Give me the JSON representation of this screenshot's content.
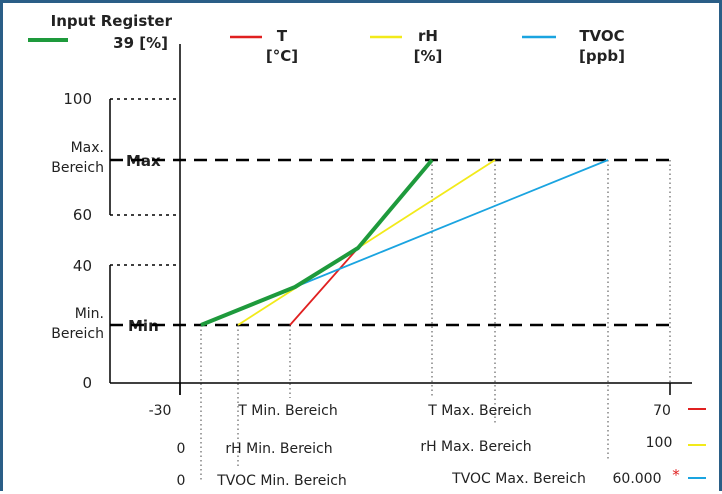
{
  "legend": {
    "register_line1": "Input Register",
    "register_line2": "39 [%]",
    "t_name": "T",
    "t_unit": "[°C]",
    "rh_name": "rH",
    "rh_unit": "[%]",
    "tvoc_name": "TVOC",
    "tvoc_unit": "[ppb]"
  },
  "y_axis": {
    "tick_100": "100",
    "tick_60": "60",
    "tick_40": "40",
    "tick_0": "0",
    "max_range_line1": "Max.",
    "max_range_line2": "Bereich",
    "min_range_line1": "Min.",
    "min_range_line2": "Bereich",
    "max_label": "Max",
    "min_label": "Min"
  },
  "rows": {
    "t": {
      "start": "-30",
      "min_label": "T Min. Bereich",
      "max_label": "T Max. Bereich",
      "end": "70"
    },
    "rh": {
      "start": "0",
      "min_label": "rH Min. Bereich",
      "max_label": "rH Max. Bereich",
      "end": "100"
    },
    "tvoc": {
      "start": "0",
      "min_label": "TVOC Min. Bereich",
      "max_label": "TVOC Max. Bereich",
      "end": "60.000",
      "footnote": "*"
    }
  },
  "colors": {
    "register": "#1e9a3c",
    "t": "#e02020",
    "rh": "#f2ea1a",
    "tvoc": "#1aa4e0",
    "frame": "#2a5e87"
  }
}
